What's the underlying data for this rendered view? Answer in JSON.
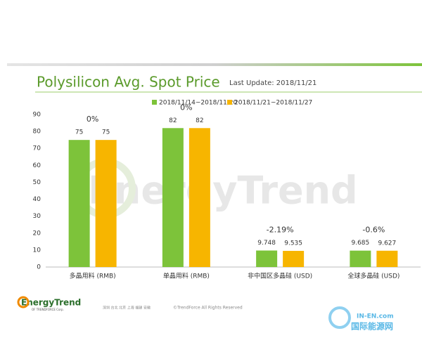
{
  "chart_data": {
    "type": "bar",
    "title": "Polysilicon Avg. Spot Price",
    "subtitle": "Last Update: 2018/11/21",
    "categories": [
      "多晶用料 (RMB)",
      "单晶用料 (RMB)",
      "非中国区多晶硅 (USD)",
      "全球多晶硅 (USD)"
    ],
    "series": [
      {
        "name": "2018/11/14~2018/11/20",
        "color": "#7dc33a",
        "values": [
          75,
          82,
          9.748,
          9.685
        ]
      },
      {
        "name": "2018/11/21~2018/11/27",
        "color": "#f7b500",
        "values": [
          75,
          82,
          9.535,
          9.627
        ]
      }
    ],
    "annotations": [
      "0%",
      "0%",
      "-2.19%",
      "-0.6%"
    ],
    "ylim": [
      0,
      90
    ],
    "yticks": [
      0,
      10,
      20,
      30,
      40,
      50,
      60,
      70,
      80,
      90
    ],
    "grid": false,
    "legend": "top"
  },
  "watermark": "EnergyTrend",
  "footer": {
    "brand": "EnergyTrend",
    "brand_sub": "OF TRENDFORCE Corp.",
    "cities": "深圳 台北 北京 上海 福建 安徽",
    "copyright": "©TrendForce All Rights Reserved",
    "site": "IN-EN.com",
    "site_cn": "国际能源网"
  }
}
